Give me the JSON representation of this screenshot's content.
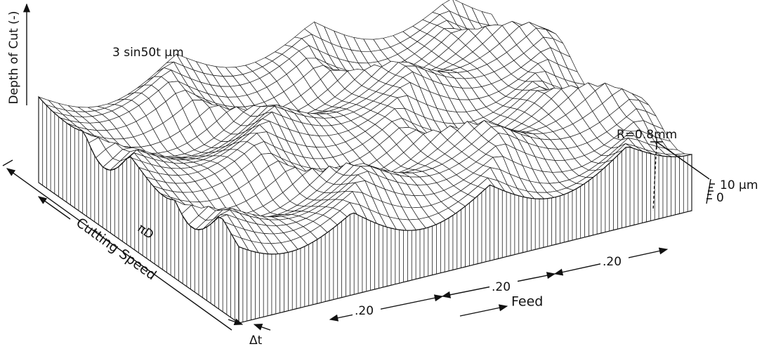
{
  "labels": {
    "depth_axis": "Depth of Cut (-)",
    "excitation": "3 sin50t μm",
    "radius": "R=0.8mm",
    "scale_top": "10 μm",
    "scale_zero": "0",
    "circumference": "πD",
    "cutting_speed": "Cutting Speed",
    "delta_t": "Δt",
    "feed_spacings": [
      ".20",
      ".20",
      ".20"
    ],
    "feed": "Feed"
  }
}
